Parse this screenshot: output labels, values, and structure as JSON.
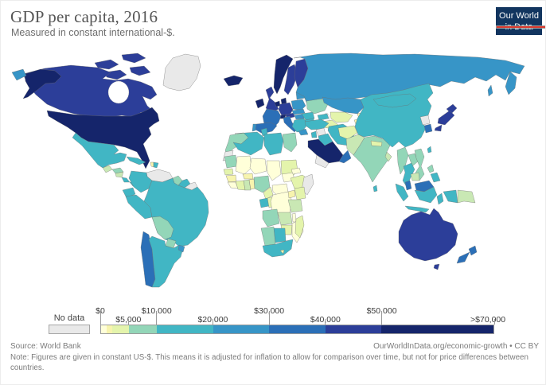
{
  "header": {
    "title": "GDP per capita, 2016",
    "subtitle": "Measured in constant international-$."
  },
  "logo": {
    "line1": "Our World",
    "line2": "in Data"
  },
  "footer": {
    "source": "Source: World Bank",
    "link": "OurWorldInData.org/economic-growth • CC BY",
    "note": "Note: Figures are given in constant US-$. This means it is adjusted for inflation to allow for comparison over time, but not for price differences between countries."
  },
  "chart_data": {
    "type": "choropleth-map",
    "title": "GDP per capita, 2016",
    "unit": "constant international-$",
    "year": 2016,
    "palette": {
      "no_data": "#e9e9e9",
      "y0": "#ffffd9",
      "y1": "#f7f4ae",
      "y2": "#e4f4ac",
      "g1": "#c9e8b4",
      "g2": "#93d6b8",
      "t1": "#41b6c4",
      "b1": "#3795c7",
      "b2": "#2b6fb7",
      "i1": "#2c3e99",
      "n1": "#15256b"
    },
    "legend": {
      "no_data_label": "No data",
      "axis_min": 0,
      "axis_max": 70000,
      "bins": [
        {
          "min": 0,
          "max": 1000,
          "color": "y0",
          "label": "$0–$1,000"
        },
        {
          "min": 1000,
          "max": 2000,
          "color": "y1",
          "label": "$1,000–$2,000"
        },
        {
          "min": 2000,
          "max": 5000,
          "color": "y2",
          "label": "$2,000–$5,000"
        },
        {
          "min": 5000,
          "max": 10000,
          "color": "g2",
          "label": "$5,000–$10,000"
        },
        {
          "min": 10000,
          "max": 20000,
          "color": "t1",
          "label": "$10,000–$20,000"
        },
        {
          "min": 20000,
          "max": 30000,
          "color": "b1",
          "label": "$20,000–$30,000"
        },
        {
          "min": 30000,
          "max": 40000,
          "color": "b2",
          "label": "$30,000–$40,000"
        },
        {
          "min": 40000,
          "max": 50000,
          "color": "i1",
          "label": "$40,000–$50,000"
        },
        {
          "min": 50000,
          "max": 70000,
          "color": "n1",
          "label": "$50,000–>$70,000"
        }
      ],
      "ticks": [
        {
          "label": "$0",
          "value": 0,
          "row": "top"
        },
        {
          "label": "$5,000",
          "value": 5000,
          "row": "bottom"
        },
        {
          "label": "$10,000",
          "value": 10000,
          "row": "top"
        },
        {
          "label": "$20,000",
          "value": 20000,
          "row": "bottom"
        },
        {
          "label": "$30,000",
          "value": 30000,
          "row": "top"
        },
        {
          "label": "$40,000",
          "value": 40000,
          "row": "bottom"
        },
        {
          "label": "$50,000",
          "value": 50000,
          "row": "top"
        },
        {
          "label": ">$70,000",
          "value": 70000,
          "row": "bottom"
        }
      ]
    },
    "regions": {
      "greenland": "no_data",
      "venezuela": "no_data",
      "french-guiana": "no_data",
      "western-sahara": "no_data",
      "somalia": "no_data",
      "syria": "no_data",
      "yemen": "no_data",
      "north-korea": "no_data",
      "usa": "n1",
      "alaska": "n1",
      "norway": "n1",
      "iceland": "n1",
      "ireland": "n1",
      "denmark": "n1",
      "netherlands": "n1",
      "switzerland": "n1",
      "saudi-arabia": "n1",
      "canada": "i1",
      "canada-arctic-1": "i1",
      "canada-arctic-2": "i1",
      "canada-arctic-3": "i1",
      "canada-arctic-4": "i1",
      "sweden": "i1",
      "finland": "i1",
      "uk": "i1",
      "germany": "i1",
      "austria": "i1",
      "australia": "i1",
      "tasmania": "i1",
      "japan-hokkaido": "i1",
      "japan-honshu": "i1",
      "japan-kyushu": "i1",
      "france": "b2",
      "spain": "b2",
      "italy": "b2",
      "sicily": "b2",
      "south-korea": "b2",
      "new-zealand-north": "b2",
      "new-zealand-south": "b2",
      "oman": "b2",
      "chile": "b2",
      "malaysia-peninsula": "b2",
      "malaysia-borneo": "b2",
      "russia": "b1",
      "russia-kamchatka": "b1",
      "russia-sakhalin": "b1",
      "russia-chukotka-west": "b1",
      "kazakhstan": "b1",
      "poland": "b1",
      "czech-slovakia": "b1",
      "hungary": "b1",
      "baltics": "b1",
      "portugal": "b1",
      "greece": "b1",
      "uruguay": "b1",
      "mexico": "t1",
      "cuba": "t1",
      "dominican-republic": "t1",
      "costa-rica": "t1",
      "panama": "t1",
      "colombia": "t1",
      "suriname": "t1",
      "ecuador": "t1",
      "peru": "t1",
      "brazil": "t1",
      "argentina": "t1",
      "algeria": "t1",
      "tunisia": "t1",
      "libya": "t1",
      "gabon": "t1",
      "botswana": "t1",
      "south-africa": "t1",
      "turkey": "t1",
      "caucasus": "t1",
      "iraq": "t1",
      "iran": "t1",
      "jordan-israel": "t1",
      "romania": "t1",
      "bulgaria": "t1",
      "balkans": "t1",
      "belarus": "t1",
      "mongolia": "t1",
      "china": "t1",
      "thailand": "t1",
      "sri-lanka": "t1",
      "taiwan": "t1",
      "indonesia-sumatra": "t1",
      "indonesia-java": "t1",
      "indonesia-kalimantan": "t1",
      "indonesia-sulawesi": "t1",
      "indonesia-papua": "t1",
      "philippines-south": "t1",
      "morocco": "g2",
      "egypt": "g2",
      "mauritania": "g2",
      "nigeria": "g2",
      "angola": "g2",
      "namibia": "g2",
      "ukraine": "g2",
      "india": "g2",
      "myanmar": "g2",
      "laos": "g2",
      "vietnam": "g2",
      "bolivia": "g2",
      "paraguay": "g2",
      "guyana": "g2",
      "honduras": "g2",
      "philippines-north": "g2",
      "pakistan": "g1",
      "bangladesh": "g1",
      "cambodia": "g1",
      "tanzania": "g1",
      "zambia": "g1",
      "ghana": "g1",
      "papua-new-guinea": "g1",
      "nicaragua": "g1",
      "guatemala": "g1",
      "sudan": "y2",
      "ethiopia": "y2",
      "kenya": "y2",
      "ivory-coast": "y2",
      "senegal": "y2",
      "cameroon": "y2",
      "congo": "y2",
      "uzbekistan": "y2",
      "turkmenistan": "y2",
      "afghanistan": "y2",
      "nepal": "y2",
      "zimbabwe": "y2",
      "madagascar": "y2",
      "guinea": "y1",
      "togo-benin": "y1",
      "burkina-faso": "y1",
      "uganda": "y1",
      "kyrgyzstan": "y1",
      "tajikistan": "y1",
      "haiti": "y1",
      "lesotho": "y1",
      "mali": "y0",
      "niger": "y0",
      "chad": "y0",
      "central-african-republic": "y0",
      "drc": "y0",
      "south-sudan": "y0",
      "eritrea": "y0",
      "malawi": "y0",
      "mozambique": "y0",
      "sierra-leone-liberia": "y0"
    }
  }
}
